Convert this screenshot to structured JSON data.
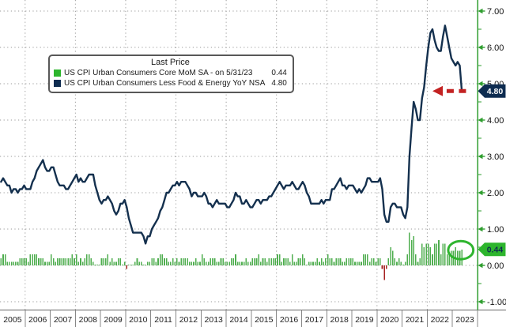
{
  "legend": {
    "title": "Last Price",
    "rows": [
      {
        "swatch_color": "#2db52d",
        "label": "US CPI Urban Consumers Core MoM SA -  on 5/31/23",
        "value": "0.44"
      },
      {
        "swatch_color": "#0e2c50",
        "label": "US CPI Urban Consumers Less Food & Energy YoY NSA",
        "value": "4.80"
      }
    ]
  },
  "y_axis": {
    "side": "right",
    "tick_labels": [
      "7.00",
      "6.00",
      "5.00",
      "4.00",
      "3.00",
      "2.00",
      "1.00",
      "0.00",
      "-1.00"
    ],
    "tick_values": [
      7,
      6,
      5,
      4,
      3,
      2,
      1,
      0,
      -1
    ],
    "minor_tick_step": 0.5,
    "axis_color": "#2f9e2f",
    "label_color": "#111111"
  },
  "x_axis": {
    "years": [
      "2005",
      "2006",
      "2007",
      "2008",
      "2009",
      "2010",
      "2011",
      "2012",
      "2013",
      "2014",
      "2015",
      "2016",
      "2017",
      "2018",
      "2019",
      "2020",
      "2021",
      "2022",
      "2023"
    ]
  },
  "badges": [
    {
      "text": "4.80",
      "value": 4.8,
      "bg": "#0e2c50",
      "fg": "#ffffff"
    },
    {
      "text": "0.44",
      "value": 0.44,
      "bg": "#2db52d",
      "fg": "#0e2c50"
    }
  ],
  "annotations": {
    "arrow": {
      "color": "#c32222",
      "value": 4.8,
      "tip_month": 206,
      "tail_month": 222,
      "style": "dashed",
      "direction": "left"
    },
    "ellipse": {
      "color": "#2fb52f",
      "cx_month": 219.5,
      "cy_value": 0.42,
      "rx_months": 6,
      "ry_value": 0.25
    }
  },
  "chart_data": {
    "type": "line+bar",
    "x_unit": "month",
    "x_start": "2005-01",
    "x_end": "2023-05",
    "x_total_slots": 228,
    "ylim": [
      -1.2,
      7.3
    ],
    "grid": {
      "color": "#9a9a9a",
      "style": "dotted",
      "h_values": [
        -1,
        0,
        1,
        2,
        3,
        4,
        5,
        6,
        7
      ],
      "v_year_starts": [
        "2006",
        "2008",
        "2010",
        "2012",
        "2014",
        "2016",
        "2018",
        "2020",
        "2022"
      ]
    },
    "series": [
      {
        "name": "US CPI Urban Consumers Less Food & Energy YoY NSA",
        "type": "line",
        "color": "#14304e",
        "last_value": 4.8,
        "values": [
          2.3,
          2.4,
          2.3,
          2.2,
          2.2,
          2.0,
          2.1,
          2.1,
          2.0,
          2.1,
          2.1,
          2.2,
          2.1,
          2.1,
          2.1,
          2.3,
          2.4,
          2.6,
          2.7,
          2.8,
          2.9,
          2.7,
          2.6,
          2.6,
          2.7,
          2.7,
          2.5,
          2.3,
          2.2,
          2.2,
          2.2,
          2.1,
          2.1,
          2.2,
          2.3,
          2.4,
          2.5,
          2.3,
          2.4,
          2.3,
          2.3,
          2.4,
          2.5,
          2.5,
          2.5,
          2.2,
          2.0,
          1.8,
          1.7,
          1.8,
          1.8,
          1.9,
          1.8,
          1.7,
          1.5,
          1.4,
          1.5,
          1.7,
          1.7,
          1.8,
          1.6,
          1.3,
          1.1,
          0.9,
          0.9,
          0.9,
          0.9,
          0.9,
          0.8,
          0.6,
          0.8,
          0.8,
          1.0,
          1.1,
          1.2,
          1.3,
          1.5,
          1.6,
          1.8,
          2.0,
          2.0,
          2.1,
          2.2,
          2.2,
          2.3,
          2.2,
          2.3,
          2.3,
          2.3,
          2.2,
          2.1,
          1.9,
          2.0,
          2.0,
          1.9,
          1.9,
          1.9,
          2.0,
          1.9,
          1.7,
          1.7,
          1.6,
          1.7,
          1.8,
          1.7,
          1.7,
          1.7,
          1.7,
          1.6,
          1.6,
          1.7,
          1.8,
          2.0,
          1.9,
          1.9,
          1.7,
          1.7,
          1.8,
          1.7,
          1.6,
          1.6,
          1.7,
          1.8,
          1.8,
          1.7,
          1.8,
          1.8,
          1.8,
          1.9,
          1.9,
          2.0,
          2.1,
          2.2,
          2.3,
          2.2,
          2.1,
          2.2,
          2.2,
          2.2,
          2.3,
          2.2,
          2.1,
          2.1,
          2.2,
          2.3,
          2.2,
          2.0,
          1.9,
          1.7,
          1.7,
          1.7,
          1.7,
          1.7,
          1.8,
          1.7,
          1.8,
          1.8,
          1.8,
          2.1,
          2.1,
          2.2,
          2.3,
          2.4,
          2.2,
          2.2,
          2.1,
          2.2,
          2.2,
          2.2,
          2.1,
          2.0,
          2.1,
          2.0,
          2.1,
          2.2,
          2.4,
          2.4,
          2.3,
          2.3,
          2.3,
          2.3,
          2.4,
          2.1,
          1.4,
          1.2,
          1.2,
          1.6,
          1.7,
          1.7,
          1.6,
          1.6,
          1.6,
          1.4,
          1.3,
          1.6,
          3.0,
          3.8,
          4.5,
          4.3,
          4.0,
          4.0,
          4.6,
          4.9,
          5.5,
          6.0,
          6.4,
          6.5,
          6.2,
          6.0,
          5.9,
          5.9,
          6.3,
          6.6,
          6.3,
          6.0,
          5.7,
          5.6,
          5.5,
          5.6,
          5.5,
          4.8
        ]
      },
      {
        "name": "US CPI Urban Consumers Core MoM SA",
        "type": "bar",
        "color": "#4fae4f",
        "negative_color": "#a62121",
        "last_value": 0.44,
        "values": [
          0.2,
          0.3,
          0.3,
          0.1,
          0.1,
          0.1,
          0.1,
          0.1,
          0.1,
          0.2,
          0.2,
          0.2,
          0.2,
          0.1,
          0.3,
          0.3,
          0.3,
          0.3,
          0.2,
          0.2,
          0.2,
          0.1,
          0.1,
          0.1,
          0.3,
          0.2,
          0.1,
          0.2,
          0.2,
          0.2,
          0.2,
          0.2,
          0.2,
          0.2,
          0.3,
          0.2,
          0.3,
          0.1,
          0.2,
          0.1,
          0.2,
          0.3,
          0.3,
          0.2,
          0.1,
          0.0,
          0.0,
          0.0,
          0.2,
          0.2,
          0.2,
          0.3,
          0.1,
          0.2,
          0.1,
          0.1,
          0.2,
          0.2,
          0.0,
          0.1,
          -0.1,
          0.0,
          0.0,
          0.0,
          0.1,
          0.2,
          0.1,
          0.1,
          0.0,
          0.0,
          0.1,
          0.1,
          0.2,
          0.2,
          0.1,
          0.2,
          0.3,
          0.3,
          0.2,
          0.2,
          0.1,
          0.1,
          0.2,
          0.1,
          0.2,
          0.1,
          0.2,
          0.2,
          0.2,
          0.2,
          0.1,
          0.1,
          0.1,
          0.2,
          0.1,
          0.1,
          0.3,
          0.2,
          0.1,
          0.1,
          0.2,
          0.2,
          0.2,
          0.1,
          0.1,
          0.2,
          0.2,
          0.1,
          0.1,
          0.1,
          0.2,
          0.2,
          0.3,
          0.1,
          0.1,
          0.1,
          0.1,
          0.2,
          0.1,
          0.1,
          0.2,
          0.2,
          0.2,
          0.3,
          0.1,
          0.2,
          0.2,
          0.1,
          0.2,
          0.2,
          0.2,
          0.2,
          0.3,
          0.3,
          0.1,
          0.2,
          0.2,
          0.2,
          0.1,
          0.3,
          0.1,
          0.1,
          0.2,
          0.2,
          0.3,
          0.2,
          0.0,
          0.1,
          0.1,
          0.1,
          0.1,
          0.2,
          0.1,
          0.2,
          0.1,
          0.2,
          0.3,
          0.2,
          0.2,
          0.1,
          0.2,
          0.2,
          0.2,
          0.1,
          0.1,
          0.2,
          0.2,
          0.2,
          0.2,
          0.1,
          0.1,
          0.1,
          0.1,
          0.3,
          0.3,
          0.3,
          0.1,
          0.2,
          0.2,
          0.1,
          0.2,
          0.2,
          -0.1,
          -0.4,
          -0.1,
          0.2,
          0.5,
          0.4,
          0.2,
          0.1,
          0.2,
          0.1,
          0.0,
          0.1,
          0.3,
          0.9,
          0.7,
          0.8,
          0.3,
          0.1,
          0.2,
          0.6,
          0.5,
          0.6,
          0.6,
          0.5,
          0.3,
          0.6,
          0.6,
          0.7,
          0.3,
          0.6,
          0.6,
          0.3,
          0.3,
          0.4,
          0.4,
          0.5,
          0.4,
          0.4,
          0.44
        ]
      }
    ]
  },
  "colors": {
    "background": "#ffffff",
    "frame": "#666666",
    "year_separator": "#888888"
  }
}
